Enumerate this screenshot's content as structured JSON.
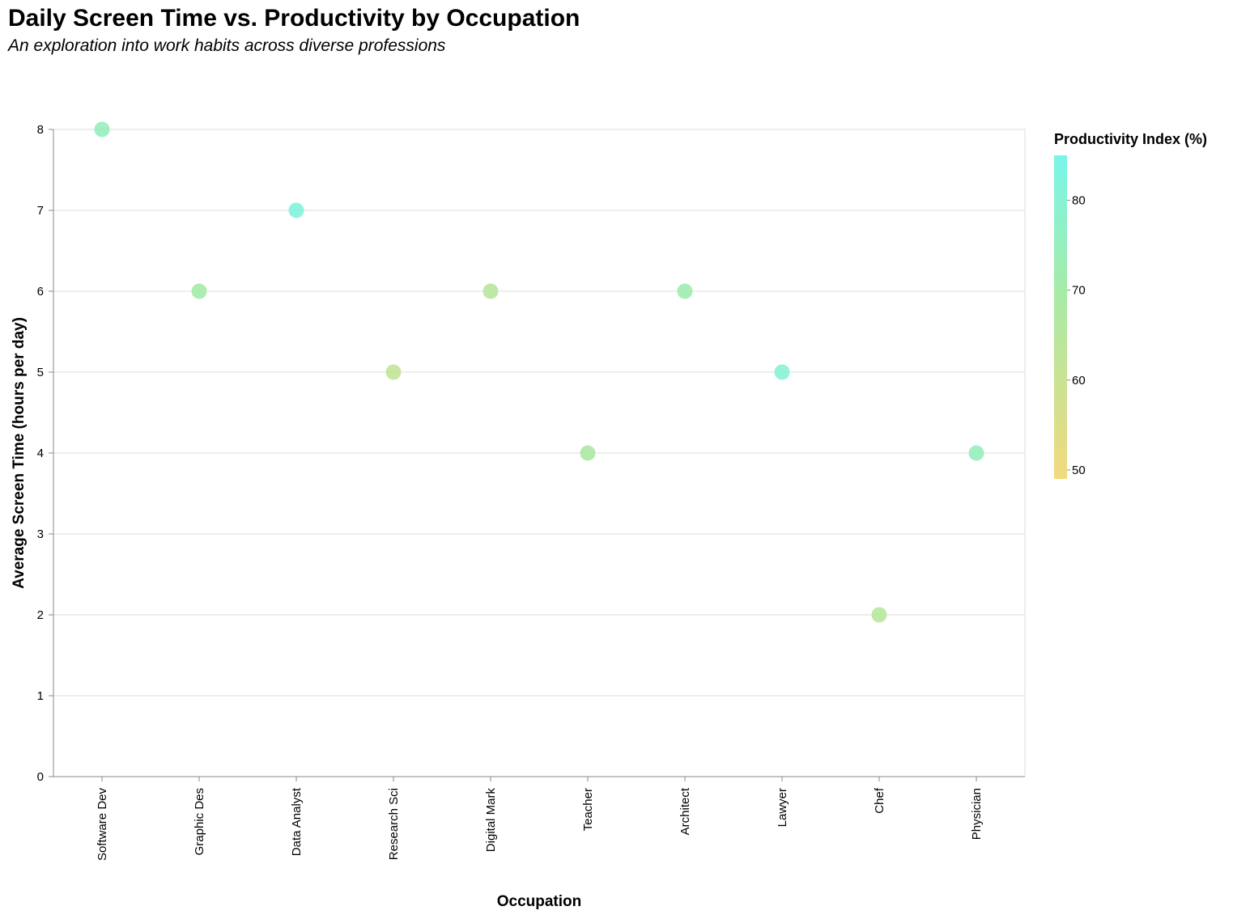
{
  "chart_data": {
    "type": "scatter",
    "title": "Daily Screen Time vs. Productivity by Occupation",
    "subtitle": "An exploration into work habits across diverse professions",
    "xlabel": "Occupation",
    "ylabel": "Average Screen Time (hours per day)",
    "ylim": [
      0,
      8
    ],
    "yticks": [
      "0",
      "1",
      "2",
      "3",
      "4",
      "5",
      "6",
      "7",
      "8"
    ],
    "grid": true,
    "categories": [
      "Software Dev",
      "Graphic Des",
      "Data Analyst",
      "Research Sci",
      "Digital Mark",
      "Teacher",
      "Architect",
      "Lawyer",
      "Chef",
      "Physician"
    ],
    "points": [
      {
        "x": "Software Dev",
        "y": 8,
        "productivity": 75
      },
      {
        "x": "Graphic Des",
        "y": 6,
        "productivity": 70
      },
      {
        "x": "Data Analyst",
        "y": 7,
        "productivity": 82
      },
      {
        "x": "Research Sci",
        "y": 5,
        "productivity": 62
      },
      {
        "x": "Digital Mark",
        "y": 6,
        "productivity": 65
      },
      {
        "x": "Teacher",
        "y": 4,
        "productivity": 68
      },
      {
        "x": "Architect",
        "y": 6,
        "productivity": 72
      },
      {
        "x": "Lawyer",
        "y": 5,
        "productivity": 80
      },
      {
        "x": "Chef",
        "y": 2,
        "productivity": 65
      },
      {
        "x": "Physician",
        "y": 4,
        "productivity": 75
      }
    ],
    "legend": {
      "title": "Productivity Index (%)",
      "placement": "right",
      "domain": [
        49,
        85
      ],
      "ticks": [
        50,
        60,
        70,
        80
      ],
      "color_low": "#f2d97e",
      "color_mid": "#a5eba7",
      "color_high": "#79f5ea"
    }
  }
}
